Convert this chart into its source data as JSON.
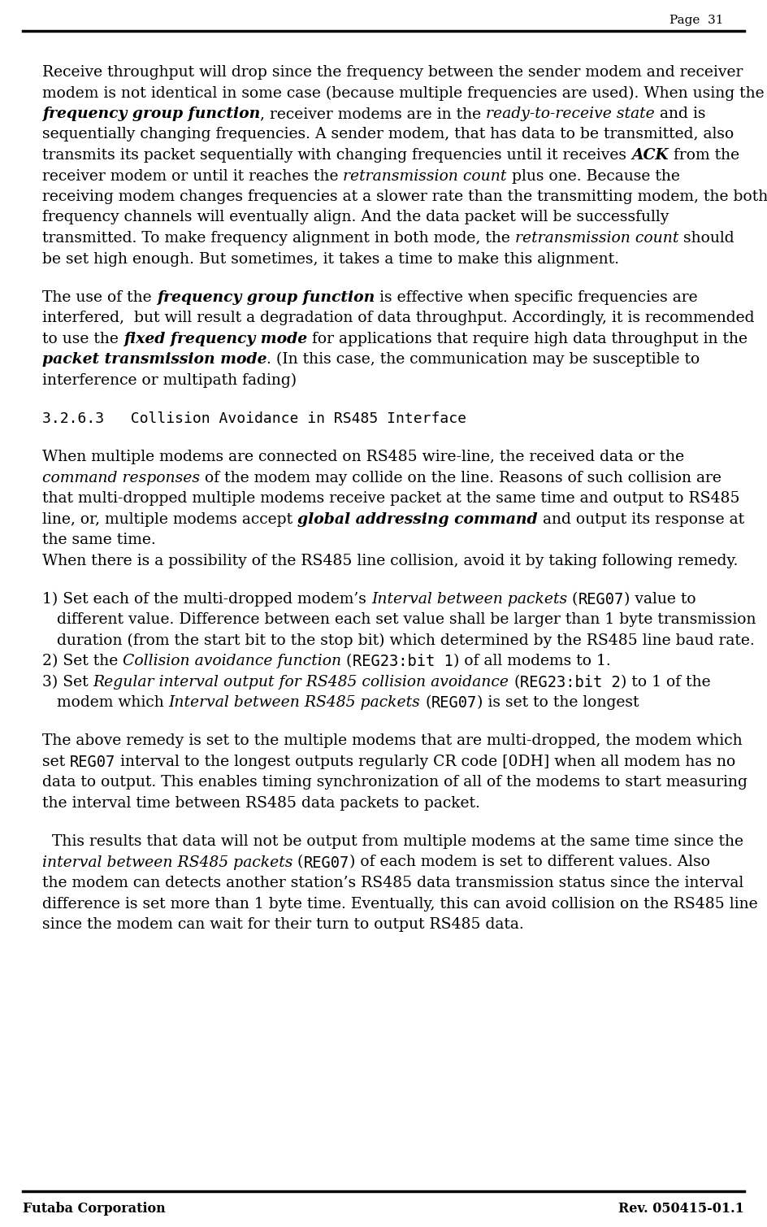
{
  "page_number": "Page  31",
  "bg_color": "#ffffff",
  "footer_left": "Futaba Corporation",
  "footer_right": "Rev. 050415-01.1",
  "body_lines": [
    [
      {
        "t": "Receive throughput will drop since the frequency between the sender modem and receiver",
        "s": "n"
      }
    ],
    [
      {
        "t": "modem is not identical in some case (because multiple frequencies are used). When using the",
        "s": "n"
      }
    ],
    [
      {
        "t": "frequency group function",
        "s": "bi"
      },
      {
        "t": ", receiver modems are in the ",
        "s": "n"
      },
      {
        "t": "ready-to-receive state",
        "s": "i"
      },
      {
        "t": " and is",
        "s": "n"
      }
    ],
    [
      {
        "t": "sequentially changing frequencies. A sender modem, that has data to be transmitted, also",
        "s": "n"
      }
    ],
    [
      {
        "t": "transmits its packet sequentially with changing frequencies until it receives ",
        "s": "n"
      },
      {
        "t": "ACK",
        "s": "bi"
      },
      {
        "t": " from the",
        "s": "n"
      }
    ],
    [
      {
        "t": "receiver modem or until it reaches the ",
        "s": "n"
      },
      {
        "t": "retransmission count",
        "s": "i"
      },
      {
        "t": " plus one. Because the",
        "s": "n"
      }
    ],
    [
      {
        "t": "receiving modem changes frequencies at a slower rate than the transmitting modem, the both",
        "s": "n"
      }
    ],
    [
      {
        "t": "frequency channels will eventually align. And the data packet will be successfully",
        "s": "n"
      }
    ],
    [
      {
        "t": "transmitted. To make frequency alignment in both mode, the ",
        "s": "n"
      },
      {
        "t": "retransmission count",
        "s": "i"
      },
      {
        "t": " should",
        "s": "n"
      }
    ],
    [
      {
        "t": "be set high enough. But sometimes, it takes a time to make this alignment.",
        "s": "n"
      }
    ],
    [],
    [
      {
        "t": "The use of the ",
        "s": "n"
      },
      {
        "t": "frequency group function",
        "s": "bi"
      },
      {
        "t": " is effective when specific frequencies are",
        "s": "n"
      }
    ],
    [
      {
        "t": "interfered,  but will result a degradation of data throughput. Accordingly, it is recommended",
        "s": "n"
      }
    ],
    [
      {
        "t": "to use the ",
        "s": "n"
      },
      {
        "t": "fixed frequency mode",
        "s": "bi"
      },
      {
        "t": " for applications that require high data throughput in the",
        "s": "n"
      }
    ],
    [
      {
        "t": "packet transmission mode",
        "s": "bi"
      },
      {
        "t": ". (In this case, the communication may be susceptible to",
        "s": "n"
      }
    ],
    [
      {
        "t": "interference or multipath fading)",
        "s": "n"
      }
    ],
    [],
    [
      {
        "t": "3.2.6.3   Collision Avoidance in RS485 Interface",
        "s": "mono"
      }
    ],
    [],
    [
      {
        "t": "When multiple modems are connected on RS485 wire-line, the received data or the",
        "s": "n"
      }
    ],
    [
      {
        "t": "command responses",
        "s": "i"
      },
      {
        "t": " of the modem may collide on the line. Reasons of such collision are",
        "s": "n"
      }
    ],
    [
      {
        "t": "that multi-dropped multiple modems receive packet at the same time and output to RS485",
        "s": "n"
      }
    ],
    [
      {
        "t": "line, or, multiple modems accept ",
        "s": "n"
      },
      {
        "t": "global addressing command",
        "s": "bi"
      },
      {
        "t": " and output its response at",
        "s": "n"
      }
    ],
    [
      {
        "t": "the same time.",
        "s": "n"
      }
    ],
    [
      {
        "t": "When there is a possibility of the RS485 line collision, avoid it by taking following remedy.",
        "s": "n"
      }
    ],
    [],
    [
      {
        "t": "1) Set each of the multi-dropped modem’s ",
        "s": "n"
      },
      {
        "t": "Interval between packets",
        "s": "i"
      },
      {
        "t": " (",
        "s": "n"
      },
      {
        "t": "REG07",
        "s": "mono"
      },
      {
        "t": ") value to",
        "s": "n"
      }
    ],
    [
      {
        "t": "   different value. Difference between each set value shall be larger than 1 byte transmission",
        "s": "n"
      }
    ],
    [
      {
        "t": "   duration (from the start bit to the stop bit) which determined by the RS485 line baud rate.",
        "s": "n"
      }
    ],
    [
      {
        "t": "2) Set the ",
        "s": "n"
      },
      {
        "t": "Collision avoidance function",
        "s": "i"
      },
      {
        "t": " (",
        "s": "n"
      },
      {
        "t": "REG23:bit 1",
        "s": "mono"
      },
      {
        "t": ") of all modems to 1.",
        "s": "n"
      }
    ],
    [
      {
        "t": "3) Set ",
        "s": "n"
      },
      {
        "t": "Regular interval output for RS485 collision avoidance",
        "s": "i"
      },
      {
        "t": " (",
        "s": "n"
      },
      {
        "t": "REG23:bit 2",
        "s": "mono"
      },
      {
        "t": ") to 1 of the",
        "s": "n"
      }
    ],
    [
      {
        "t": "   modem which ",
        "s": "n"
      },
      {
        "t": "Interval between RS485 packets",
        "s": "i"
      },
      {
        "t": " (",
        "s": "n"
      },
      {
        "t": "REG07",
        "s": "mono"
      },
      {
        "t": ") is set to the longest",
        "s": "n"
      }
    ],
    [],
    [
      {
        "t": "The above remedy is set to the multiple modems that are multi-dropped, the modem which",
        "s": "n"
      }
    ],
    [
      {
        "t": "set ",
        "s": "n"
      },
      {
        "t": "REG07",
        "s": "mono"
      },
      {
        "t": " interval to the longest outputs regularly CR code [0DH] when all modem has no",
        "s": "n"
      }
    ],
    [
      {
        "t": "data to output. This enables timing synchronization of all of the modems to start measuring",
        "s": "n"
      }
    ],
    [
      {
        "t": "the interval time between RS485 data packets to packet.",
        "s": "n"
      }
    ],
    [],
    [
      {
        "t": "  This results that data will not be output from multiple modems at the same time since the",
        "s": "n"
      }
    ],
    [
      {
        "t": "interval between RS485 packets",
        "s": "i"
      },
      {
        "t": " (",
        "s": "n"
      },
      {
        "t": "REG07",
        "s": "mono"
      },
      {
        "t": ") of each modem is set to different values. Also",
        "s": "n"
      }
    ],
    [
      {
        "t": "the modem can detects another station’s RS485 data transmission status since the interval",
        "s": "n"
      }
    ],
    [
      {
        "t": "difference is set more than 1 byte time. Eventually, this can avoid collision on the RS485 line",
        "s": "n"
      }
    ],
    [
      {
        "t": "since the modem can wait for their turn to output RS485 data.",
        "s": "n"
      }
    ]
  ]
}
